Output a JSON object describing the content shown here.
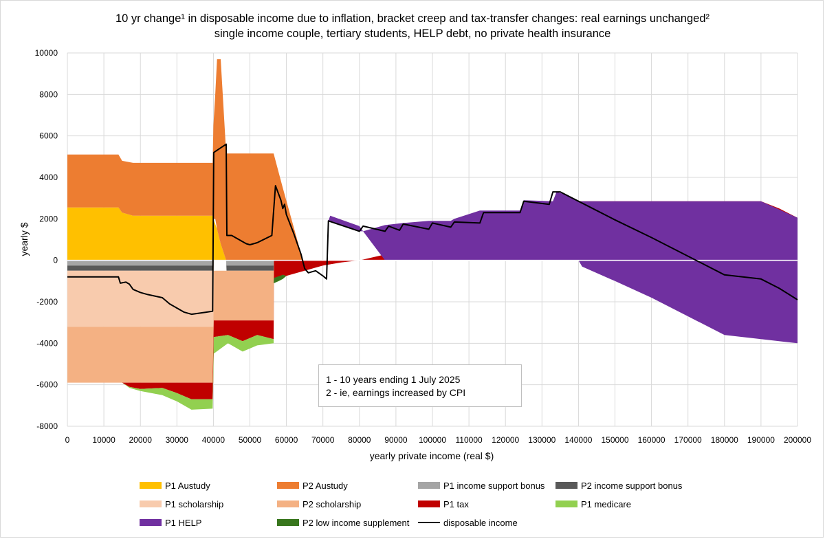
{
  "chart_data": {
    "type": "area",
    "title": "10 yr change¹ in disposable income due to inflation, bracket creep and tax-transfer changes: real earnings unchanged²",
    "subtitle": "single income couple, tertiary students, HELP debt, no private health insurance",
    "xlabel": "yearly private income (real $)",
    "ylabel": "yearly $",
    "xlim": [
      0,
      200000
    ],
    "ylim": [
      -8000,
      10000
    ],
    "x_ticks": [
      "0",
      "10000",
      "20000",
      "30000",
      "40000",
      "50000",
      "60000",
      "70000",
      "80000",
      "90000",
      "100000",
      "110000",
      "120000",
      "130000",
      "140000",
      "150000",
      "160000",
      "170000",
      "180000",
      "190000",
      "200000"
    ],
    "y_ticks": [
      "10000",
      "8000",
      "6000",
      "4000",
      "2000",
      "0",
      "-2000",
      "-4000",
      "-6000",
      "-8000"
    ],
    "grid": true,
    "legend_position": "bottom",
    "notes": [
      "1 - 10 years ending 1 July 2025",
      "2 - ie, earnings increased by CPI"
    ],
    "series": [
      {
        "name": "P1 Austudy",
        "color": "#FFC000",
        "kind": "area",
        "points": [
          [
            0,
            0,
            2550
          ],
          [
            14000,
            0,
            2550
          ],
          [
            15000,
            0,
            2300
          ],
          [
            18000,
            0,
            2150
          ],
          [
            39800,
            0,
            2150
          ],
          [
            40000,
            0,
            2000
          ],
          [
            41000,
            0,
            1500
          ],
          [
            42000,
            0,
            800
          ],
          [
            43500,
            0,
            0
          ]
        ]
      },
      {
        "name": "P2 Austudy",
        "color": "#ED7D31",
        "kind": "area",
        "points": [
          [
            0,
            2550,
            5100
          ],
          [
            14000,
            2550,
            5100
          ],
          [
            15000,
            2300,
            4800
          ],
          [
            18000,
            2150,
            4700
          ],
          [
            39800,
            2150,
            4700
          ],
          [
            40000,
            2000,
            6500
          ],
          [
            40500,
            2000,
            8000
          ],
          [
            41000,
            1500,
            9700
          ],
          [
            42000,
            800,
            9700
          ],
          [
            43500,
            0,
            5150
          ],
          [
            56500,
            0,
            5150
          ],
          [
            59000,
            0,
            3500
          ],
          [
            62000,
            0,
            1600
          ],
          [
            64500,
            0,
            0
          ]
        ]
      },
      {
        "name": "P1 income support bonus",
        "color": "#A5A5A5",
        "kind": "area",
        "points": [
          [
            0,
            -250,
            0
          ],
          [
            40000,
            -250,
            0
          ],
          [
            40100,
            0,
            0
          ],
          [
            43500,
            0,
            0
          ],
          [
            43600,
            -250,
            0
          ],
          [
            56500,
            -250,
            0
          ],
          [
            56600,
            0,
            0
          ]
        ]
      },
      {
        "name": "P2 income support bonus",
        "color": "#595959",
        "kind": "area",
        "points": [
          [
            0,
            -500,
            -250
          ],
          [
            40000,
            -500,
            -250
          ],
          [
            40100,
            0,
            0
          ],
          [
            43500,
            0,
            0
          ],
          [
            43600,
            -500,
            -250
          ],
          [
            56500,
            -500,
            -250
          ],
          [
            56600,
            0,
            0
          ]
        ]
      },
      {
        "name": "P1 scholarship",
        "color": "#F8CBAD",
        "kind": "area",
        "points": [
          [
            0,
            -3200,
            -500
          ],
          [
            40000,
            -3200,
            -500
          ],
          [
            40100,
            0,
            0
          ]
        ]
      },
      {
        "name": "P2 scholarship",
        "color": "#F4B183",
        "kind": "area",
        "points": [
          [
            0,
            -5900,
            -3200
          ],
          [
            40000,
            -5900,
            -3200
          ],
          [
            40100,
            -2900,
            -500
          ],
          [
            56500,
            -2900,
            -500
          ],
          [
            56600,
            0,
            0
          ]
        ]
      },
      {
        "name": "P1 tax",
        "color": "#C00000",
        "kind": "area",
        "points": [
          [
            0,
            -5900,
            -5900
          ],
          [
            15000,
            -5900,
            -5900
          ],
          [
            17000,
            -6100,
            -5900
          ],
          [
            20000,
            -6200,
            -5900
          ],
          [
            26000,
            -6150,
            -5900
          ],
          [
            30000,
            -6400,
            -5900
          ],
          [
            34000,
            -6700,
            -5900
          ],
          [
            39800,
            -6700,
            -5900
          ],
          [
            40100,
            -3700,
            -2900
          ],
          [
            44000,
            -3600,
            -2900
          ],
          [
            48000,
            -3900,
            -2900
          ],
          [
            52000,
            -3600,
            -2900
          ],
          [
            56500,
            -3800,
            -2900
          ],
          [
            56600,
            -900,
            0
          ],
          [
            60000,
            -750,
            0
          ],
          [
            65000,
            -500,
            0
          ],
          [
            70000,
            -250,
            0
          ],
          [
            75000,
            -100,
            0
          ],
          [
            80000,
            0,
            0
          ],
          [
            85000,
            0,
            200
          ],
          [
            90000,
            0,
            400
          ],
          [
            100000,
            0,
            650
          ],
          [
            105000,
            0,
            800
          ],
          [
            110000,
            0,
            1200
          ],
          [
            120000,
            0,
            1900
          ],
          [
            130000,
            0,
            2600
          ],
          [
            135000,
            0,
            2850
          ],
          [
            190000,
            0,
            2850
          ],
          [
            195000,
            0,
            2500
          ],
          [
            200000,
            0,
            2050
          ]
        ]
      },
      {
        "name": "P1 medicare",
        "color": "#92D050",
        "kind": "area",
        "points": [
          [
            0,
            -5900,
            -5900
          ],
          [
            15000,
            -5900,
            -5900
          ],
          [
            17000,
            -6150,
            -6100
          ],
          [
            20000,
            -6300,
            -6200
          ],
          [
            26000,
            -6500,
            -6150
          ],
          [
            30000,
            -6800,
            -6400
          ],
          [
            34000,
            -7200,
            -6700
          ],
          [
            39800,
            -7150,
            -6700
          ],
          [
            40100,
            -4500,
            -3700
          ],
          [
            44000,
            -4000,
            -3600
          ],
          [
            48000,
            -4400,
            -3900
          ],
          [
            52000,
            -4100,
            -3600
          ],
          [
            56500,
            -4000,
            -3800
          ],
          [
            56600,
            -1100,
            -900
          ],
          [
            58000,
            -1000,
            -800
          ],
          [
            59000,
            -900,
            -700
          ],
          [
            60000,
            -750,
            -750
          ]
        ]
      },
      {
        "name": "P1 HELP",
        "color": "#7030A0",
        "kind": "area",
        "points": [
          [
            71500,
            1900,
            1900
          ],
          [
            72000,
            1900,
            2150
          ],
          [
            80000,
            1400,
            1650
          ],
          [
            81000,
            1400,
            1400
          ],
          [
            87000,
            0,
            1700
          ],
          [
            92000,
            0,
            1800
          ],
          [
            99000,
            0,
            1900
          ],
          [
            105000,
            0,
            1900
          ],
          [
            106000,
            0,
            2000
          ],
          [
            113000,
            0,
            2400
          ],
          [
            124000,
            0,
            2400
          ],
          [
            125000,
            0,
            2900
          ],
          [
            133000,
            0,
            2850
          ],
          [
            134000,
            0,
            3300
          ],
          [
            136000,
            0,
            3200
          ],
          [
            140000,
            0,
            2850
          ],
          [
            141000,
            -300,
            2850
          ],
          [
            150000,
            -1000,
            2850
          ],
          [
            160000,
            -1800,
            2850
          ],
          [
            170000,
            -2700,
            2850
          ],
          [
            180000,
            -3600,
            2850
          ],
          [
            190000,
            -3800,
            2850
          ],
          [
            200000,
            -4000,
            2050
          ]
        ]
      },
      {
        "name": "P2 low income supplement",
        "color": "#38761D",
        "kind": "area",
        "points": [
          [
            56500,
            -1100,
            -1100
          ],
          [
            56600,
            -1100,
            -850
          ],
          [
            59000,
            -900,
            -700
          ],
          [
            60000,
            -750,
            -750
          ]
        ]
      },
      {
        "name": "disposable income",
        "color": "#000000",
        "kind": "line",
        "points": [
          [
            0,
            -800
          ],
          [
            14000,
            -800
          ],
          [
            14500,
            -1100
          ],
          [
            16000,
            -1050
          ],
          [
            17000,
            -1150
          ],
          [
            18000,
            -1400
          ],
          [
            20000,
            -1550
          ],
          [
            22000,
            -1650
          ],
          [
            26000,
            -1800
          ],
          [
            28000,
            -2100
          ],
          [
            32000,
            -2500
          ],
          [
            34000,
            -2600
          ],
          [
            36000,
            -2550
          ],
          [
            38000,
            -2500
          ],
          [
            39800,
            -2450
          ],
          [
            40100,
            5200
          ],
          [
            43500,
            5600
          ],
          [
            43700,
            1200
          ],
          [
            45000,
            1200
          ],
          [
            46000,
            1100
          ],
          [
            48000,
            900
          ],
          [
            49000,
            800
          ],
          [
            50000,
            750
          ],
          [
            52000,
            850
          ],
          [
            56000,
            1200
          ],
          [
            57000,
            3600
          ],
          [
            58500,
            2900
          ],
          [
            59000,
            2500
          ],
          [
            59500,
            2700
          ],
          [
            60000,
            2200
          ],
          [
            62000,
            1300
          ],
          [
            64000,
            300
          ],
          [
            65000,
            -400
          ],
          [
            66000,
            -600
          ],
          [
            68000,
            -500
          ],
          [
            70000,
            -750
          ],
          [
            71000,
            -900
          ],
          [
            71500,
            1900
          ],
          [
            80000,
            1400
          ],
          [
            81000,
            1650
          ],
          [
            87000,
            1400
          ],
          [
            88000,
            1650
          ],
          [
            91000,
            1450
          ],
          [
            92000,
            1750
          ],
          [
            99000,
            1500
          ],
          [
            100000,
            1800
          ],
          [
            105000,
            1600
          ],
          [
            106000,
            1850
          ],
          [
            113000,
            1800
          ],
          [
            114000,
            2300
          ],
          [
            124000,
            2300
          ],
          [
            125000,
            2850
          ],
          [
            132000,
            2700
          ],
          [
            133000,
            3300
          ],
          [
            135000,
            3300
          ],
          [
            140000,
            2850
          ],
          [
            150000,
            1950
          ],
          [
            160000,
            1100
          ],
          [
            170000,
            200
          ],
          [
            180000,
            -700
          ],
          [
            190000,
            -900
          ],
          [
            195000,
            -1350
          ],
          [
            200000,
            -1900
          ]
        ]
      }
    ]
  }
}
